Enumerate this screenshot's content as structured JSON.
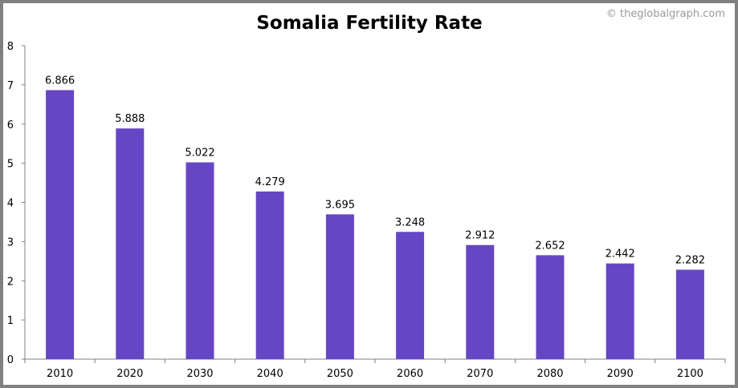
{
  "watermark": "© theglobalgraph.com",
  "chart_data": {
    "type": "bar",
    "title": "Somalia Fertility Rate",
    "xlabel": "",
    "ylabel": "",
    "categories": [
      "2010",
      "2020",
      "2030",
      "2040",
      "2050",
      "2060",
      "2070",
      "2080",
      "2090",
      "2100"
    ],
    "values": [
      6.866,
      5.888,
      5.022,
      4.279,
      3.695,
      3.248,
      2.912,
      2.652,
      2.442,
      2.282
    ],
    "data_labels": [
      "6.866",
      "5.888",
      "5.022",
      "4.279",
      "3.695",
      "3.248",
      "2.912",
      "2.652",
      "2.442",
      "2.282"
    ],
    "ylim": [
      0,
      8
    ],
    "yticks": [
      "0",
      "1",
      "2",
      "3",
      "4",
      "5",
      "6",
      "7",
      "8"
    ],
    "grid": false,
    "bar_color": "#6646C4"
  }
}
